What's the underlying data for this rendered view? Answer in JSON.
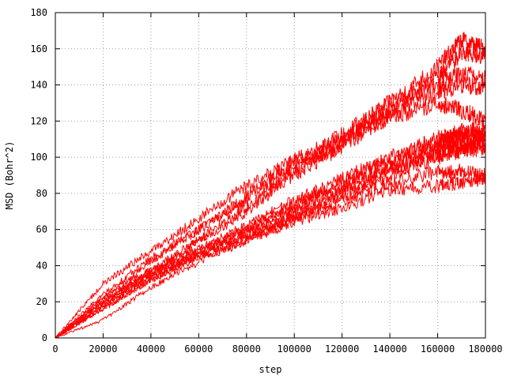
{
  "chart_data": {
    "type": "line",
    "title": "",
    "xlabel": "step",
    "ylabel": "MSD (Bohr^2)",
    "xlim": [
      0,
      180000
    ],
    "ylim": [
      0,
      180
    ],
    "xticks": [
      0,
      20000,
      40000,
      60000,
      80000,
      100000,
      120000,
      140000,
      160000,
      180000
    ],
    "yticks": [
      0,
      20,
      40,
      60,
      80,
      100,
      120,
      140,
      160,
      180
    ],
    "grid": true,
    "legend": "none",
    "line_color": "#ff0000",
    "series": [
      {
        "x": [
          0,
          20000,
          40000,
          60000,
          80000,
          100000,
          120000,
          140000,
          160000,
          170000,
          180000
        ],
        "values": [
          0,
          22,
          42,
          60,
          78,
          98,
          112,
          130,
          150,
          165,
          160
        ]
      },
      {
        "x": [
          0,
          20000,
          40000,
          60000,
          80000,
          100000,
          120000,
          140000,
          160000,
          170000,
          180000
        ],
        "values": [
          0,
          20,
          38,
          54,
          72,
          92,
          108,
          126,
          144,
          158,
          156
        ]
      },
      {
        "x": [
          0,
          20000,
          40000,
          60000,
          80000,
          100000,
          120000,
          140000,
          160000,
          170000,
          180000
        ],
        "values": [
          0,
          24,
          44,
          60,
          76,
          94,
          110,
          130,
          140,
          146,
          144
        ]
      },
      {
        "x": [
          0,
          20000,
          40000,
          60000,
          80000,
          100000,
          120000,
          140000,
          160000,
          170000,
          180000
        ],
        "values": [
          0,
          18,
          36,
          54,
          70,
          90,
          106,
          124,
          136,
          140,
          138
        ]
      },
      {
        "x": [
          0,
          20000,
          40000,
          60000,
          80000,
          100000,
          120000,
          140000,
          160000,
          170000,
          180000
        ],
        "values": [
          0,
          30,
          48,
          66,
          84,
          98,
          110,
          122,
          130,
          126,
          120
        ]
      },
      {
        "x": [
          0,
          20000,
          40000,
          60000,
          80000,
          100000,
          120000,
          140000,
          160000,
          170000,
          180000
        ],
        "values": [
          0,
          22,
          38,
          50,
          62,
          76,
          88,
          100,
          110,
          114,
          116
        ]
      },
      {
        "x": [
          0,
          20000,
          40000,
          60000,
          80000,
          100000,
          120000,
          140000,
          160000,
          170000,
          180000
        ],
        "values": [
          0,
          18,
          34,
          48,
          60,
          74,
          86,
          98,
          108,
          112,
          113
        ]
      },
      {
        "x": [
          0,
          20000,
          40000,
          60000,
          80000,
          100000,
          120000,
          140000,
          160000,
          170000,
          180000
        ],
        "values": [
          0,
          20,
          36,
          48,
          60,
          72,
          84,
          96,
          106,
          110,
          111
        ]
      },
      {
        "x": [
          0,
          20000,
          40000,
          60000,
          80000,
          100000,
          120000,
          140000,
          160000,
          170000,
          180000
        ],
        "values": [
          0,
          16,
          32,
          46,
          58,
          70,
          82,
          94,
          104,
          108,
          109
        ]
      },
      {
        "x": [
          0,
          20000,
          40000,
          60000,
          80000,
          100000,
          120000,
          140000,
          160000,
          170000,
          180000
        ],
        "values": [
          0,
          18,
          34,
          46,
          58,
          68,
          80,
          92,
          102,
          106,
          107
        ]
      },
      {
        "x": [
          0,
          20000,
          40000,
          60000,
          80000,
          100000,
          120000,
          140000,
          160000,
          170000,
          180000
        ],
        "values": [
          0,
          20,
          36,
          46,
          56,
          66,
          78,
          90,
          100,
          104,
          105
        ]
      },
      {
        "x": [
          0,
          20000,
          40000,
          60000,
          80000,
          100000,
          120000,
          140000,
          160000,
          170000,
          180000
        ],
        "values": [
          0,
          16,
          32,
          44,
          54,
          66,
          76,
          86,
          92,
          92,
          90
        ]
      },
      {
        "x": [
          0,
          20000,
          40000,
          60000,
          80000,
          100000,
          120000,
          140000,
          160000,
          170000,
          180000
        ],
        "values": [
          0,
          10,
          28,
          42,
          54,
          64,
          72,
          82,
          84,
          86,
          88
        ]
      }
    ]
  }
}
